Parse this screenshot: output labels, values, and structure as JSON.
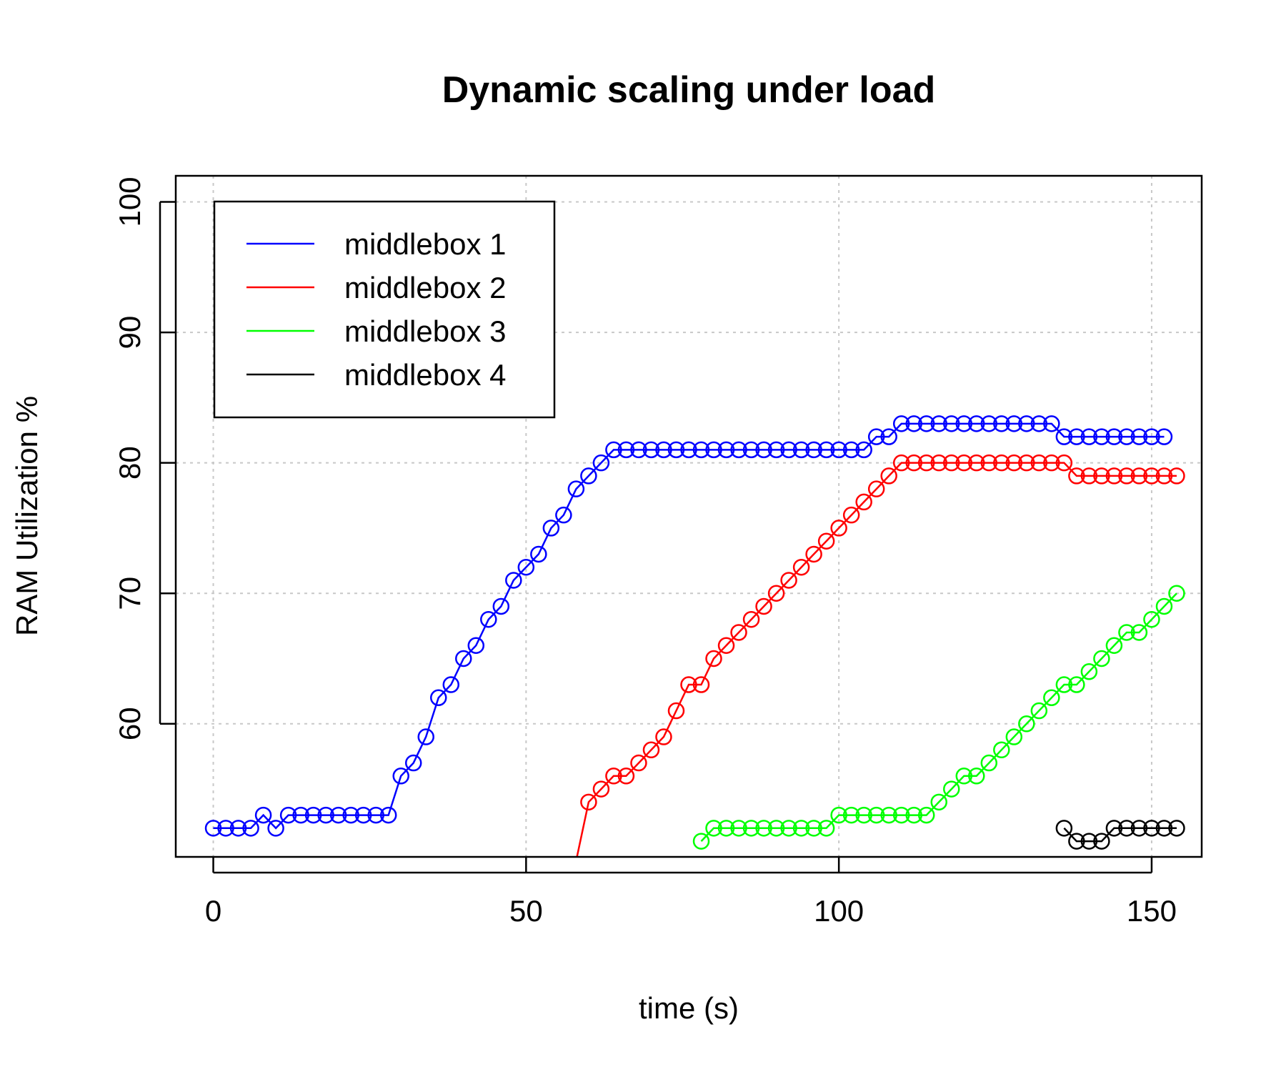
{
  "chart_data": {
    "type": "line",
    "title": "Dynamic scaling under load",
    "xlabel": "time (s)",
    "ylabel": "RAM Utilization %",
    "xlim": [
      -6,
      158
    ],
    "ylim": [
      49.8,
      102
    ],
    "xticks": [
      0,
      50,
      100,
      150
    ],
    "yticks": [
      60,
      70,
      80,
      90,
      100
    ],
    "grid": true,
    "legend_position": "top-left",
    "series": [
      {
        "name": "middlebox 1",
        "color": "#0000ff",
        "x": [
          0,
          2,
          4,
          6,
          8,
          10,
          12,
          14,
          16,
          18,
          20,
          22,
          24,
          26,
          28,
          30,
          32,
          34,
          36,
          38,
          40,
          42,
          44,
          46,
          48,
          50,
          52,
          54,
          56,
          58,
          60,
          62,
          64,
          66,
          68,
          70,
          72,
          74,
          76,
          78,
          80,
          82,
          84,
          86,
          88,
          90,
          92,
          94,
          96,
          98,
          100,
          102,
          104,
          106,
          108,
          110,
          112,
          114,
          116,
          118,
          120,
          122,
          124,
          126,
          128,
          130,
          132,
          134,
          136,
          138,
          140,
          142,
          144,
          146,
          148,
          150,
          152
        ],
        "y": [
          52,
          52,
          52,
          52,
          53,
          52,
          53,
          53,
          53,
          53,
          53,
          53,
          53,
          53,
          53,
          56,
          57,
          59,
          62,
          63,
          65,
          66,
          68,
          69,
          71,
          72,
          73,
          75,
          76,
          78,
          79,
          80,
          81,
          81,
          81,
          81,
          81,
          81,
          81,
          81,
          81,
          81,
          81,
          81,
          81,
          81,
          81,
          81,
          81,
          81,
          81,
          81,
          81,
          82,
          82,
          83,
          83,
          83,
          83,
          83,
          83,
          83,
          83,
          83,
          83,
          83,
          83,
          83,
          82,
          82,
          82,
          82,
          82,
          82,
          82,
          82,
          82
        ]
      },
      {
        "name": "middlebox 2",
        "color": "#ff0000",
        "x": [
          58,
          60,
          62,
          64,
          66,
          68,
          70,
          72,
          74,
          76,
          78,
          80,
          82,
          84,
          86,
          88,
          90,
          92,
          94,
          96,
          98,
          100,
          102,
          104,
          106,
          108,
          110,
          112,
          114,
          116,
          118,
          120,
          122,
          124,
          126,
          128,
          130,
          132,
          134,
          136,
          138,
          140,
          142,
          144,
          146,
          148,
          150,
          152,
          154
        ],
        "y": [
          49.5,
          54,
          55,
          56,
          56,
          57,
          58,
          59,
          61,
          63,
          63,
          65,
          66,
          67,
          68,
          69,
          70,
          71,
          72,
          73,
          74,
          75,
          76,
          77,
          78,
          79,
          80,
          80,
          80,
          80,
          80,
          80,
          80,
          80,
          80,
          80,
          80,
          80,
          80,
          80,
          79,
          79,
          79,
          79,
          79,
          79,
          79,
          79,
          79
        ]
      },
      {
        "name": "middlebox 3",
        "color": "#00ff00",
        "x": [
          78,
          80,
          82,
          84,
          86,
          88,
          90,
          92,
          94,
          96,
          98,
          100,
          102,
          104,
          106,
          108,
          110,
          112,
          114,
          116,
          118,
          120,
          122,
          124,
          126,
          128,
          130,
          132,
          134,
          136,
          138,
          140,
          142,
          144,
          146,
          148,
          150,
          152,
          154
        ],
        "y": [
          51,
          52,
          52,
          52,
          52,
          52,
          52,
          52,
          52,
          52,
          52,
          53,
          53,
          53,
          53,
          53,
          53,
          53,
          53,
          54,
          55,
          56,
          56,
          57,
          58,
          59,
          60,
          61,
          62,
          63,
          63,
          64,
          65,
          66,
          67,
          67,
          68,
          69,
          70
        ]
      },
      {
        "name": "middlebox 4",
        "color": "#000000",
        "x": [
          136,
          138,
          140,
          142,
          144,
          146,
          148,
          150,
          152,
          154
        ],
        "y": [
          52,
          51,
          51,
          51,
          52,
          52,
          52,
          52,
          52,
          52
        ]
      }
    ]
  }
}
